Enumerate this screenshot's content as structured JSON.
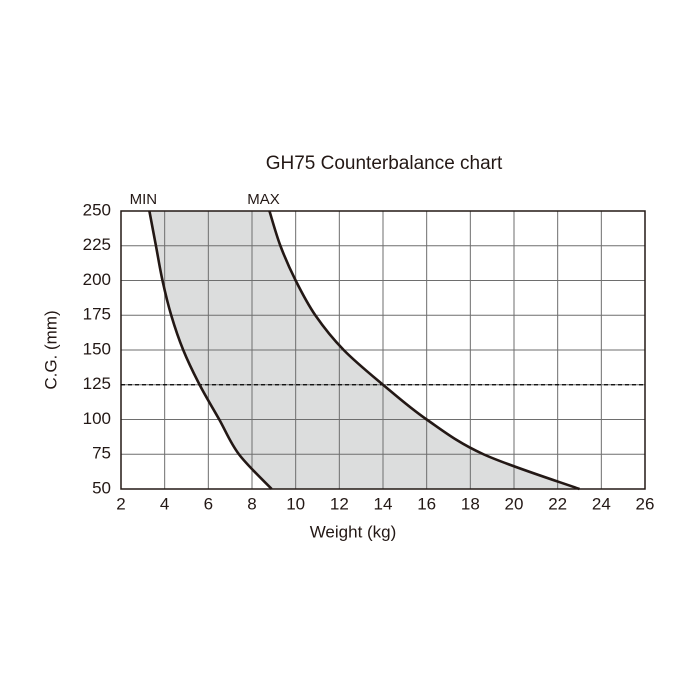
{
  "chart_data": {
    "type": "line",
    "title": "GH75 Counterbalance chart",
    "x_label": "Weight (kg)",
    "y_label": "C.G. (mm)",
    "series": [
      {
        "name": "MIN",
        "color": "#231815",
        "x": [
          3.3,
          3.6,
          3.9,
          4.3,
          4.85,
          5.6,
          6.5,
          7.4,
          8.9
        ],
        "values": [
          250,
          225,
          200,
          175,
          150,
          125,
          100,
          75,
          50
        ]
      },
      {
        "name": "MAX",
        "color": "#231815",
        "x": [
          8.8,
          9.3,
          10.0,
          10.9,
          12.2,
          14.0,
          16.0,
          18.6,
          23.0
        ],
        "values": [
          250,
          225,
          200,
          175,
          150,
          125,
          100,
          75,
          50
        ]
      }
    ],
    "fill_between": "#dcdddd",
    "hline": 125,
    "xlim": [
      2,
      26
    ],
    "xticks": [
      2,
      4,
      6,
      8,
      10,
      12,
      14,
      16,
      18,
      20,
      22,
      24,
      26
    ],
    "ylim": [
      50,
      250
    ],
    "yticks": [
      50,
      75,
      100,
      125,
      150,
      175,
      200,
      225,
      250
    ],
    "grid": true
  }
}
